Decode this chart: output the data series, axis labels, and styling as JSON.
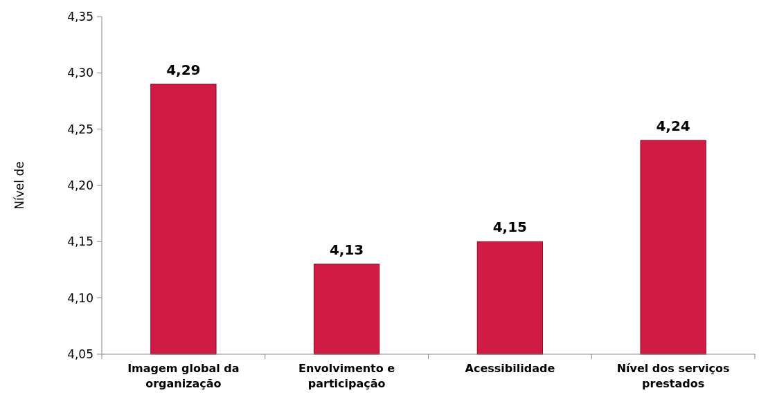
{
  "chart_data": {
    "type": "bar",
    "ylabel": "Nível de",
    "categories": [
      "Imagem global da organização",
      "Envolvimento e participação",
      "Acessibilidade",
      "Nível dos serviços prestados"
    ],
    "values": [
      4.29,
      4.13,
      4.15,
      4.24
    ],
    "value_labels": [
      "4,29",
      "4,13",
      "4,15",
      "4,24"
    ],
    "color": "#d01c44",
    "ylim": [
      4.05,
      4.35
    ],
    "yticks": [
      {
        "value": 4.05,
        "label": "4,05"
      },
      {
        "value": 4.1,
        "label": "4,10"
      },
      {
        "value": 4.15,
        "label": "4,15"
      },
      {
        "value": 4.2,
        "label": "4,20"
      },
      {
        "value": 4.25,
        "label": "4,25"
      },
      {
        "value": 4.3,
        "label": "4,30"
      },
      {
        "value": 4.35,
        "label": "4,35"
      }
    ],
    "grid": false
  }
}
